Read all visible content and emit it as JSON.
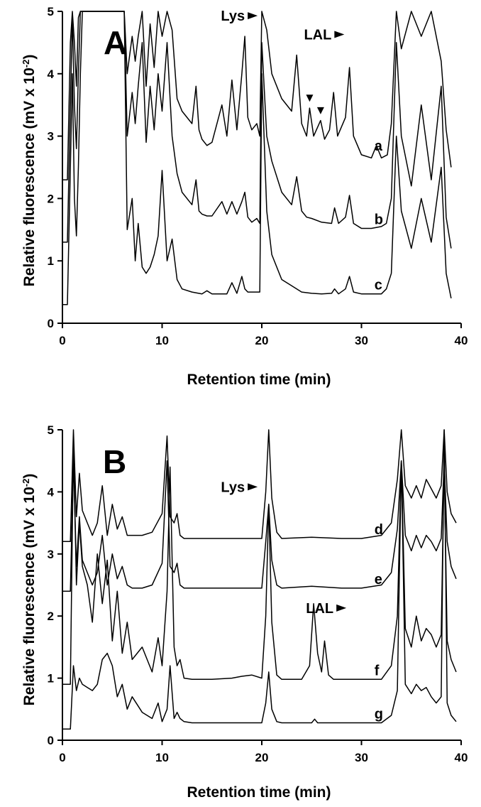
{
  "chart_data": [
    {
      "type": "line",
      "panel": "A",
      "xlabel": "Retention time (min)",
      "ylabel": "Relative fluorescence (mV x 10",
      "ylabel_sup": "-2",
      "ylabel_close": ")",
      "xlim": [
        0,
        40
      ],
      "ylim": [
        0,
        5
      ],
      "xticks": [
        0,
        10,
        20,
        30,
        40
      ],
      "yticks": [
        0,
        1,
        2,
        3,
        4,
        5
      ],
      "annotations": [
        {
          "text": "Lys",
          "x": 18.3,
          "y": 4.85,
          "arrow_x": 18.6
        },
        {
          "text": "LAL",
          "x": 27.0,
          "y": 4.55
        }
      ],
      "markers": [
        {
          "x": 24.8,
          "y": 3.55
        },
        {
          "x": 25.9,
          "y": 3.35
        }
      ],
      "series": [
        {
          "name": "a",
          "x": [
            0,
            0.5,
            0.8,
            1.0,
            1.2,
            1.4,
            1.6,
            1.8,
            2.0,
            3.0,
            3.5,
            6.2,
            6.5,
            7.0,
            7.3,
            7.6,
            8.0,
            8.4,
            8.8,
            9.2,
            9.6,
            10.0,
            10.5,
            11.0,
            11.5,
            12.0,
            13.0,
            13.4,
            13.7,
            14.0,
            14.5,
            15.0,
            16.0,
            16.5,
            17.0,
            17.5,
            18.0,
            18.3,
            18.6,
            19.0,
            19.5,
            19.8,
            20.0,
            20.5,
            21.0,
            22.0,
            23.0,
            23.5,
            24.0,
            24.5,
            24.8,
            25.2,
            25.9,
            26.3,
            26.8,
            27.2,
            27.6,
            28.4,
            28.8,
            29.2,
            30.0,
            31.0,
            31.5,
            32.0,
            32.6,
            33.0,
            33.5,
            34.0,
            35.0,
            36.0,
            37.0,
            38.0,
            38.5,
            39.0
          ],
          "values": [
            2.3,
            2.3,
            4.5,
            5.0,
            4.5,
            3.8,
            4.9,
            5.0,
            5.0,
            5.0,
            5.0,
            5.0,
            4.0,
            4.6,
            4.2,
            4.6,
            5.0,
            3.8,
            4.8,
            4.1,
            5.0,
            4.6,
            5.0,
            4.7,
            3.6,
            3.4,
            3.2,
            3.8,
            3.1,
            2.95,
            2.85,
            2.9,
            3.5,
            3.0,
            3.9,
            3.1,
            4.0,
            4.6,
            3.3,
            3.1,
            3.2,
            3.0,
            5.0,
            4.7,
            4.0,
            3.6,
            3.4,
            4.3,
            3.2,
            3.0,
            3.45,
            3.0,
            3.25,
            2.95,
            3.1,
            3.7,
            3.0,
            3.3,
            4.1,
            3.0,
            2.7,
            2.65,
            2.85,
            2.65,
            2.7,
            3.2,
            5.0,
            4.4,
            5.0,
            4.6,
            5.0,
            4.2,
            3.1,
            2.5
          ]
        },
        {
          "name": "b",
          "x": [
            0,
            0.5,
            0.8,
            1.0,
            1.2,
            1.4,
            1.6,
            1.8,
            2.0,
            3.0,
            3.5,
            6.2,
            6.5,
            7.0,
            7.3,
            7.6,
            8.0,
            8.4,
            8.8,
            9.2,
            9.6,
            10.0,
            10.5,
            11.0,
            11.5,
            12.0,
            13.0,
            13.4,
            13.7,
            14.0,
            14.5,
            15.0,
            16.0,
            16.5,
            17.0,
            17.5,
            18.0,
            18.3,
            18.6,
            19.0,
            19.5,
            19.8,
            20.0,
            20.5,
            21.0,
            22.0,
            23.0,
            23.5,
            24.0,
            24.5,
            25.0,
            26.0,
            27.0,
            27.3,
            27.7,
            28.4,
            28.8,
            29.2,
            30.0,
            31.0,
            32.0,
            32.5,
            33.0,
            33.5,
            34.0,
            35.0,
            36.0,
            37.0,
            38.0,
            38.5,
            39.0
          ],
          "values": [
            1.3,
            1.3,
            3.5,
            4.9,
            3.5,
            2.8,
            4.0,
            5.0,
            5.0,
            5.0,
            5.0,
            5.0,
            3.0,
            3.7,
            3.2,
            3.8,
            4.5,
            2.9,
            3.8,
            3.1,
            4.0,
            3.4,
            4.5,
            3.0,
            2.4,
            2.1,
            1.9,
            2.3,
            1.8,
            1.75,
            1.72,
            1.72,
            1.95,
            1.75,
            1.95,
            1.75,
            1.95,
            2.1,
            1.7,
            1.62,
            1.68,
            1.6,
            4.5,
            3.0,
            2.6,
            2.1,
            1.9,
            2.35,
            1.8,
            1.7,
            1.68,
            1.62,
            1.6,
            1.85,
            1.6,
            1.7,
            2.05,
            1.6,
            1.52,
            1.52,
            1.55,
            1.6,
            2.0,
            4.5,
            3.0,
            2.2,
            3.5,
            2.3,
            3.8,
            1.7,
            1.2
          ]
        },
        {
          "name": "c",
          "x": [
            0,
            0.5,
            0.8,
            1.0,
            1.2,
            1.4,
            1.6,
            1.8,
            2.0,
            3.0,
            3.5,
            6.2,
            6.5,
            7.0,
            7.3,
            7.6,
            8.0,
            8.4,
            8.8,
            9.2,
            9.6,
            10.0,
            10.5,
            11.0,
            11.5,
            12.0,
            13.0,
            14.0,
            14.5,
            15.0,
            16.0,
            16.5,
            17.0,
            17.5,
            18.0,
            18.3,
            18.6,
            19.0,
            19.5,
            19.8,
            20.0,
            20.5,
            21.0,
            22.0,
            23.0,
            24.0,
            25.0,
            26.0,
            27.0,
            27.3,
            27.7,
            28.4,
            28.8,
            29.2,
            30.0,
            31.0,
            32.0,
            32.5,
            33.0,
            33.5,
            34.0,
            35.0,
            36.0,
            37.0,
            38.0,
            38.5,
            39.0
          ],
          "values": [
            0.3,
            0.3,
            2.5,
            4.0,
            2.0,
            1.4,
            2.5,
            4.0,
            5.0,
            5.0,
            5.0,
            5.0,
            1.5,
            2.0,
            1.0,
            1.6,
            0.9,
            0.8,
            0.9,
            1.1,
            1.4,
            2.45,
            1.0,
            1.35,
            0.7,
            0.55,
            0.5,
            0.47,
            0.52,
            0.47,
            0.47,
            0.47,
            0.65,
            0.48,
            0.75,
            0.55,
            0.5,
            0.5,
            0.5,
            0.5,
            4.0,
            1.8,
            1.1,
            0.7,
            0.6,
            0.5,
            0.48,
            0.47,
            0.48,
            0.55,
            0.47,
            0.55,
            0.75,
            0.5,
            0.47,
            0.47,
            0.47,
            0.55,
            0.8,
            3.0,
            1.8,
            1.2,
            2.0,
            1.3,
            2.5,
            0.8,
            0.4
          ]
        }
      ]
    },
    {
      "type": "line",
      "panel": "B",
      "xlabel": "Retention time (min)",
      "ylabel": "Relative fluorescence (mV x 10",
      "ylabel_sup": "-2",
      "ylabel_close": ")",
      "xlim": [
        0,
        40
      ],
      "ylim": [
        0,
        5
      ],
      "xticks": [
        0,
        10,
        20,
        30,
        40
      ],
      "yticks": [
        0,
        1,
        2,
        3,
        4,
        5
      ],
      "annotations": [
        {
          "text": "Lys",
          "x": 18.3,
          "y": 4.0
        },
        {
          "text": "LAL",
          "x": 27.2,
          "y": 2.05
        }
      ],
      "series": [
        {
          "name": "d",
          "x": [
            0,
            0.8,
            1.1,
            1.4,
            1.7,
            2.0,
            2.5,
            3.0,
            3.5,
            4.0,
            4.5,
            5.0,
            5.5,
            6.0,
            6.5,
            7.0,
            8.0,
            9.0,
            10.0,
            10.5,
            10.8,
            11.2,
            11.5,
            11.8,
            12.2,
            13.0,
            15.0,
            18.0,
            20.0,
            20.4,
            20.7,
            21.0,
            21.5,
            22.0,
            25.0,
            28.0,
            30.0,
            32.0,
            33.0,
            33.6,
            34.0,
            34.4,
            35.0,
            35.5,
            36.0,
            36.5,
            37.0,
            37.5,
            38.0,
            38.3,
            38.6,
            39.0,
            39.5
          ],
          "values": [
            3.2,
            3.2,
            5.0,
            3.6,
            4.3,
            3.7,
            3.5,
            3.3,
            3.5,
            4.1,
            3.3,
            3.8,
            3.4,
            3.6,
            3.3,
            3.3,
            3.3,
            3.35,
            3.65,
            4.9,
            3.6,
            3.5,
            3.65,
            3.3,
            3.25,
            3.25,
            3.25,
            3.25,
            3.25,
            4.0,
            5.0,
            3.9,
            3.35,
            3.25,
            3.27,
            3.25,
            3.25,
            3.3,
            3.5,
            4.2,
            5.0,
            4.1,
            3.9,
            4.1,
            3.9,
            4.2,
            4.05,
            3.9,
            4.1,
            5.0,
            4.0,
            3.65,
            3.5
          ]
        },
        {
          "name": "e",
          "x": [
            0,
            0.8,
            1.1,
            1.4,
            1.7,
            2.0,
            2.5,
            3.0,
            3.5,
            4.0,
            4.5,
            5.0,
            5.5,
            6.0,
            6.5,
            7.0,
            8.0,
            9.0,
            10.0,
            10.5,
            10.8,
            11.2,
            11.5,
            11.8,
            12.2,
            13.0,
            15.0,
            18.0,
            20.0,
            20.4,
            20.7,
            21.0,
            21.5,
            22.0,
            25.0,
            28.0,
            30.0,
            32.0,
            33.0,
            33.6,
            34.0,
            34.4,
            35.0,
            35.5,
            36.0,
            36.5,
            37.0,
            37.5,
            38.0,
            38.3,
            38.6,
            39.0,
            39.5
          ],
          "values": [
            2.4,
            2.4,
            4.5,
            2.8,
            3.6,
            2.9,
            2.7,
            2.5,
            2.7,
            3.3,
            2.5,
            3.0,
            2.6,
            2.8,
            2.5,
            2.45,
            2.45,
            2.5,
            2.85,
            4.5,
            2.8,
            2.7,
            2.85,
            2.5,
            2.45,
            2.45,
            2.45,
            2.45,
            2.45,
            3.2,
            3.8,
            2.9,
            2.5,
            2.45,
            2.48,
            2.45,
            2.45,
            2.5,
            2.7,
            3.4,
            4.5,
            3.3,
            3.05,
            3.3,
            3.1,
            3.3,
            3.2,
            3.05,
            3.25,
            4.5,
            3.2,
            2.8,
            2.6
          ]
        },
        {
          "name": "f",
          "x": [
            0,
            0.8,
            1.1,
            1.4,
            1.7,
            2.0,
            2.5,
            3.0,
            3.5,
            4.0,
            4.5,
            5.0,
            5.5,
            6.0,
            6.5,
            7.0,
            8.0,
            9.0,
            9.6,
            10.0,
            10.5,
            10.8,
            11.2,
            11.5,
            11.8,
            12.2,
            13.0,
            15.0,
            17.0,
            18.0,
            19.0,
            20.0,
            20.4,
            20.7,
            21.0,
            21.5,
            22.0,
            24.0,
            24.8,
            25.2,
            25.6,
            26.0,
            26.3,
            26.7,
            27.2,
            28.0,
            30.0,
            32.0,
            33.0,
            33.6,
            34.0,
            34.4,
            35.0,
            35.5,
            36.0,
            36.5,
            37.0,
            37.5,
            38.0,
            38.3,
            38.6,
            39.0,
            39.5
          ],
          "values": [
            0.9,
            0.9,
            4.8,
            2.5,
            3.5,
            2.8,
            2.5,
            1.9,
            3.0,
            2.2,
            2.9,
            1.6,
            2.4,
            1.4,
            1.9,
            1.3,
            1.5,
            1.1,
            1.65,
            1.2,
            2.4,
            4.4,
            1.5,
            1.2,
            1.3,
            1.0,
            0.98,
            0.98,
            1.0,
            1.03,
            1.05,
            1.0,
            2.0,
            3.8,
            1.9,
            1.05,
            0.98,
            0.98,
            1.2,
            2.2,
            1.4,
            1.1,
            1.6,
            1.05,
            0.98,
            0.98,
            0.98,
            0.98,
            1.2,
            2.0,
            4.5,
            1.8,
            1.5,
            2.0,
            1.6,
            1.8,
            1.7,
            1.5,
            1.7,
            4.5,
            1.6,
            1.3,
            1.1
          ]
        },
        {
          "name": "g",
          "x": [
            0,
            0.8,
            1.1,
            1.4,
            1.7,
            2.0,
            2.5,
            3.0,
            3.5,
            4.0,
            4.5,
            5.0,
            5.5,
            6.0,
            6.5,
            7.0,
            8.0,
            9.0,
            9.6,
            10.0,
            10.5,
            10.8,
            11.2,
            11.5,
            11.8,
            12.2,
            13.0,
            15.0,
            18.0,
            20.0,
            20.4,
            20.7,
            21.0,
            21.5,
            22.0,
            25.0,
            25.3,
            25.6,
            28.0,
            30.0,
            32.0,
            33.0,
            33.6,
            34.0,
            34.4,
            35.0,
            35.5,
            36.0,
            36.5,
            37.0,
            37.5,
            38.0,
            38.3,
            38.6,
            39.0,
            39.5
          ],
          "values": [
            0.18,
            0.18,
            1.2,
            0.8,
            1.0,
            0.9,
            0.85,
            0.8,
            0.9,
            1.3,
            1.4,
            1.2,
            0.7,
            0.9,
            0.5,
            0.7,
            0.45,
            0.35,
            0.6,
            0.3,
            0.5,
            1.2,
            0.35,
            0.45,
            0.35,
            0.3,
            0.28,
            0.28,
            0.28,
            0.28,
            0.6,
            1.1,
            0.5,
            0.3,
            0.28,
            0.28,
            0.34,
            0.28,
            0.28,
            0.28,
            0.28,
            0.4,
            0.8,
            4.5,
            0.9,
            0.75,
            0.9,
            0.8,
            0.85,
            0.7,
            0.6,
            0.7,
            5.0,
            0.6,
            0.4,
            0.3
          ]
        }
      ]
    }
  ]
}
